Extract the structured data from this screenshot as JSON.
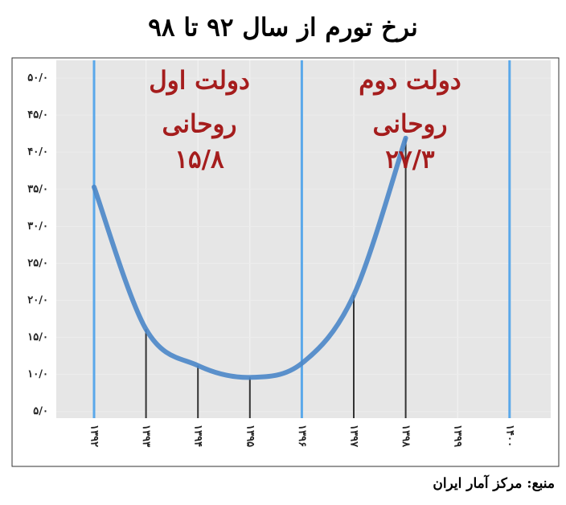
{
  "chart_data": {
    "type": "line",
    "title": "نرخ تورم از سال ۹۲ تا ۹۸",
    "categories": [
      "۱۳۹۲",
      "۱۳۹۳",
      "۱۳۹۴",
      "۱۳۹۵",
      "۱۳۹۶",
      "۱۳۹۷",
      "۱۳۹۸",
      "۱۳۹۹",
      "۱۴۰۰"
    ],
    "values": [
      35.3,
      16.1,
      11.2,
      9.6,
      11.5,
      20.7,
      41.9,
      null,
      null
    ],
    "color": "#4a86c8",
    "ylim": [
      4.1,
      52.4
    ],
    "yticks": [
      {
        "value": 5,
        "label": "۵/۰"
      },
      {
        "value": 10,
        "label": "۱۰/۰"
      },
      {
        "value": 15,
        "label": "۱۵/۰"
      },
      {
        "value": 20,
        "label": "۲۰/۰"
      },
      {
        "value": 25,
        "label": "۲۵/۰"
      },
      {
        "value": 30,
        "label": "۳۰/۰"
      },
      {
        "value": 35,
        "label": "۳۵/۰"
      },
      {
        "value": 40,
        "label": "۴۰/۰"
      },
      {
        "value": 45,
        "label": "۴۵/۰"
      },
      {
        "value": 50,
        "label": "۵۰/۰"
      }
    ],
    "annotations": [
      [
        "دولت اول",
        "روحانی",
        "۱۵/۸"
      ],
      [
        "دولت دوم",
        "روحانی",
        "۲۷/۳"
      ]
    ],
    "source": "منبع: مرکز آمار ایران"
  }
}
